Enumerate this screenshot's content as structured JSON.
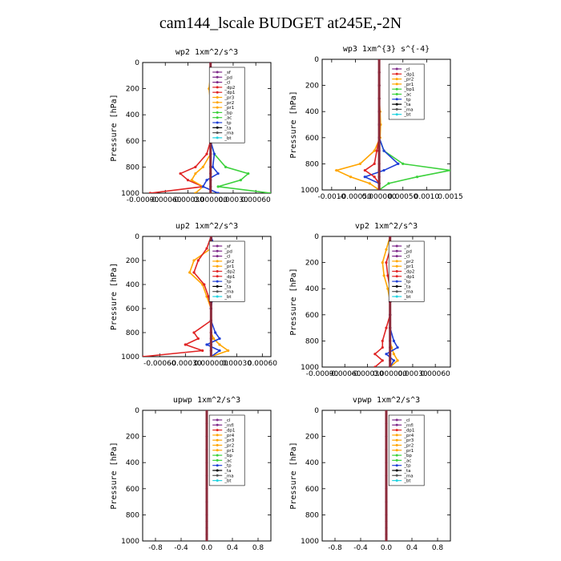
{
  "title": "cam144_lscale  BUDGET at245E,-2N",
  "colors": {
    "_sf": "#7f2a8a",
    "_pd": "#7f2a8a",
    "_cl": "#7f2a8a",
    "_mfl": "#7f2a8a",
    "_dp2": "#e02424",
    "_dp1": "#e02424",
    "_pr1": "#ffa500",
    "_pr2": "#ffa500",
    "_pr3": "#ffa500",
    "_pr4": "#ffa500",
    "_bp": "#3cd13c",
    "_bp1": "#3cd13c",
    "_ac": "#3cd13c",
    "_tp": "#1f3fd6",
    "_ta": "#000000",
    "_ma": "#555555",
    "_bt": "#22d3e0"
  },
  "chart_data": [
    {
      "type": "line",
      "title": "wp2   1xm^2/s^3",
      "ylabel": "Pressure [hPa]",
      "xlim": [
        -0.0009,
        0.0008
      ],
      "ylim": [
        1000,
        0
      ],
      "xticks": [
        -0.0009,
        -0.0006,
        -0.0003,
        0.0,
        0.0003,
        0.0006
      ],
      "xtick_labels": [
        "-0.00090",
        "-0.00060",
        "-0.00030",
        "0.000000",
        "0.00030",
        "0.00060"
      ],
      "yticks": [
        0,
        200,
        400,
        600,
        800,
        1000
      ],
      "legend": [
        "_sf",
        "_pd",
        "_cl",
        "_dp2",
        "_dp1",
        "_pr3",
        "_pr2",
        "_pr1",
        "_bp",
        "_ac",
        "_tp",
        "_ta",
        "_ma",
        "_bt"
      ],
      "legend_position": "top-right",
      "y": [
        0,
        100,
        200,
        300,
        400,
        500,
        600,
        700,
        800,
        850,
        900,
        950,
        1000
      ],
      "series": [
        {
          "key": "_dp1",
          "values": [
            0,
            0,
            5e-05,
            0,
            0,
            0,
            0,
            -5e-05,
            -0.0002,
            -0.0004,
            -0.0003,
            -0.0001,
            -0.0008
          ]
        },
        {
          "key": "_pr2",
          "values": [
            0,
            0,
            -2e-05,
            0,
            0,
            0,
            0,
            0,
            -0.0001,
            -0.0002,
            -0.00025,
            -0.0001,
            -0.0002
          ]
        },
        {
          "key": "_bp",
          "values": [
            0,
            0,
            0,
            0,
            0,
            0,
            0,
            5e-05,
            0.0002,
            0.0005,
            0.0004,
            0.0001,
            0.0008
          ]
        },
        {
          "key": "_tp",
          "values": [
            0,
            0,
            0,
            0,
            0,
            0,
            0,
            5e-05,
            3e-05,
            0.0001,
            -5e-05,
            -0.0001,
            0.0001
          ]
        },
        {
          "key": "_sf",
          "values": [
            0,
            0,
            0,
            0,
            0,
            0,
            0,
            0,
            0,
            0,
            0,
            0,
            0
          ]
        }
      ]
    },
    {
      "type": "line",
      "title": "wp3   1xm^{3} s^{-4}",
      "ylabel": "Pressure [hPa]",
      "xlim": [
        -0.0012,
        0.0015
      ],
      "ylim": [
        1000,
        0
      ],
      "xticks": [
        -0.001,
        -0.0005,
        0.0,
        0.0005,
        0.001,
        0.0015
      ],
      "xtick_labels": [
        "-0.0010",
        "-0.00050",
        "0.000000",
        "0.00050",
        "0.0010",
        "0.0015"
      ],
      "yticks": [
        0,
        200,
        400,
        600,
        800,
        1000
      ],
      "legend": [
        "_cl",
        "_dp1",
        "_pr2",
        "_pr1",
        "_bp1",
        "_ac",
        "_tp",
        "_ta",
        "_ma",
        "_bt"
      ],
      "legend_position": "top-right",
      "y": [
        0,
        100,
        200,
        300,
        400,
        500,
        600,
        700,
        800,
        850,
        900,
        950,
        1000
      ],
      "series": [
        {
          "key": "_pr2",
          "values": [
            0,
            0,
            0,
            0,
            2e-05,
            3e-05,
            2e-05,
            -0.0001,
            -0.0004,
            -0.0009,
            -0.0006,
            -0.0002,
            0
          ]
        },
        {
          "key": "_bp1",
          "values": [
            0,
            0,
            0,
            0,
            0,
            0,
            0,
            0.0001,
            0.0005,
            0.0015,
            0.0008,
            0.0002,
            0
          ]
        },
        {
          "key": "_tp",
          "values": [
            0,
            0,
            0,
            0,
            0,
            0,
            0,
            0.0001,
            0.0004,
            0.0001,
            -0.0003,
            0,
            0
          ]
        },
        {
          "key": "_dp1",
          "values": [
            0,
            0,
            0,
            0,
            0,
            0,
            0,
            -5e-05,
            -0.0001,
            -0.0003,
            -0.0001,
            0,
            0
          ]
        },
        {
          "key": "_cl",
          "values": [
            0,
            0,
            0,
            0,
            0,
            0,
            0,
            0,
            0,
            0,
            0,
            0,
            0
          ]
        }
      ]
    },
    {
      "type": "line",
      "title": "up2   1xm^2/s^3",
      "ylabel": "Pressure [hPa]",
      "xlim": [
        -0.0008,
        0.0007
      ],
      "ylim": [
        1000,
        0
      ],
      "xticks": [
        -0.0006,
        -0.0003,
        0.0,
        0.0003,
        0.0006
      ],
      "xtick_labels": [
        "-0.00060",
        "-0.00030",
        "0.000000",
        "0.00030",
        "0.00060"
      ],
      "yticks": [
        0,
        200,
        400,
        600,
        800,
        1000
      ],
      "legend": [
        "_sf",
        "_pd",
        "_cl",
        "_pr2",
        "_pr1",
        "_dp2",
        "_dp1",
        "_tp",
        "_ta",
        "_ma",
        "_bt"
      ],
      "legend_position": "top-right",
      "y": [
        0,
        100,
        200,
        300,
        400,
        500,
        600,
        700,
        800,
        850,
        900,
        950,
        1000
      ],
      "series": [
        {
          "key": "_pr1",
          "values": [
            0,
            0,
            -0.0002,
            -0.00025,
            -0.0001,
            -5e-05,
            0,
            0,
            0,
            3e-05,
            0.0001,
            0.0002,
            0
          ]
        },
        {
          "key": "_dp2",
          "values": [
            0,
            -5e-05,
            -0.00015,
            -0.0002,
            -8e-05,
            -3e-05,
            0,
            0,
            -0.0002,
            -0.00015,
            -0.0003,
            -0.0001,
            -0.0008
          ]
        },
        {
          "key": "_tp",
          "values": [
            0,
            5e-05,
            0.0001,
            8e-05,
            5e-05,
            2e-05,
            0,
            0,
            5e-05,
            0.0001,
            -5e-05,
            0.0001,
            0
          ]
        },
        {
          "key": "_cl",
          "values": [
            0,
            0,
            0,
            0,
            0,
            0,
            0,
            0,
            0,
            0,
            0,
            0,
            0
          ]
        }
      ]
    },
    {
      "type": "line",
      "title": "vp2   1xm^2/s^3",
      "ylabel": "Pressure [hPa]",
      "xlim": [
        -0.0009,
        0.0008
      ],
      "ylim": [
        1000,
        0
      ],
      "xticks": [
        -0.0009,
        -0.0006,
        -0.0003,
        0.0,
        0.0003,
        0.0006
      ],
      "xtick_labels": [
        "-0.00090",
        "-0.00060",
        "-0.00030",
        "0.000000",
        "0.00030",
        "0.00060"
      ],
      "yticks": [
        0,
        200,
        400,
        600,
        800,
        1000
      ],
      "legend": [
        "_sf",
        "_pd",
        "_cl",
        "_pr2",
        "_pr1",
        "_dp2",
        "_dp1",
        "_tp",
        "_ta",
        "_ma",
        "_bt"
      ],
      "legend_position": "top-right",
      "y": [
        0,
        100,
        200,
        300,
        400,
        500,
        600,
        700,
        800,
        850,
        900,
        950,
        1000
      ],
      "series": [
        {
          "key": "_pr1",
          "values": [
            0,
            -5e-05,
            -0.0001,
            -8e-05,
            -3e-05,
            0,
            0,
            0,
            0,
            2e-05,
            5e-05,
            0.0001,
            0
          ]
        },
        {
          "key": "_dp2",
          "values": [
            0,
            0,
            -5e-05,
            -3e-05,
            0,
            0,
            0,
            -5e-05,
            -0.0001,
            -0.0001,
            -0.0002,
            -0.0001,
            -0.0002
          ]
        },
        {
          "key": "_tp",
          "values": [
            0,
            0,
            0,
            0,
            0,
            0,
            0,
            0,
            5e-05,
            0.0001,
            -5e-05,
            5e-05,
            0
          ]
        },
        {
          "key": "_cl",
          "values": [
            0,
            0,
            0,
            0,
            0,
            0,
            0,
            0,
            0,
            0,
            0,
            0,
            0
          ]
        }
      ]
    },
    {
      "type": "line",
      "title": "upwp   1xm^2/s^3",
      "ylabel": "Pressure [hPa]",
      "xlim": [
        -1,
        1
      ],
      "ylim": [
        1000,
        0
      ],
      "xticks": [
        -0.8,
        -0.4,
        0.0,
        0.4,
        0.8
      ],
      "xtick_labels": [
        "-0.8",
        "-0.4",
        "0.0",
        "0.4",
        "0.8"
      ],
      "yticks": [
        0,
        200,
        400,
        600,
        800,
        1000
      ],
      "legend": [
        "_cl",
        "_mfl",
        "_dp1",
        "_pr4",
        "_pr3",
        "_pr2",
        "_pr1",
        "_bp",
        "_ac",
        "_tp",
        "_ta",
        "_ma",
        "_bt"
      ],
      "legend_position": "top-right",
      "y": [
        0,
        100,
        200,
        300,
        400,
        500,
        600,
        700,
        800,
        850,
        900,
        950,
        1000
      ],
      "series": [
        {
          "key": "_cl",
          "values": [
            0,
            0,
            0,
            0,
            0,
            0,
            0,
            0,
            0,
            0,
            0,
            0,
            0
          ]
        }
      ]
    },
    {
      "type": "line",
      "title": "vpwp   1xm^2/s^3",
      "ylabel": "Pressure [hPa]",
      "xlim": [
        -1,
        1
      ],
      "ylim": [
        1000,
        0
      ],
      "xticks": [
        -0.8,
        -0.4,
        0.0,
        0.4,
        0.8
      ],
      "xtick_labels": [
        "-0.8",
        "-0.4",
        "0.0",
        "0.4",
        "0.8"
      ],
      "yticks": [
        0,
        200,
        400,
        600,
        800,
        1000
      ],
      "legend": [
        "_cl",
        "_mfl",
        "_dp1",
        "_pr4",
        "_pr3",
        "_pr2",
        "_pr1",
        "_bp",
        "_ac",
        "_tp",
        "_ta",
        "_ma",
        "_bt"
      ],
      "legend_position": "top-right",
      "y": [
        0,
        100,
        200,
        300,
        400,
        500,
        600,
        700,
        800,
        850,
        900,
        950,
        1000
      ],
      "series": [
        {
          "key": "_cl",
          "values": [
            0,
            0,
            0,
            0,
            0,
            0,
            0,
            0,
            0,
            0,
            0,
            0,
            0
          ]
        }
      ]
    }
  ]
}
